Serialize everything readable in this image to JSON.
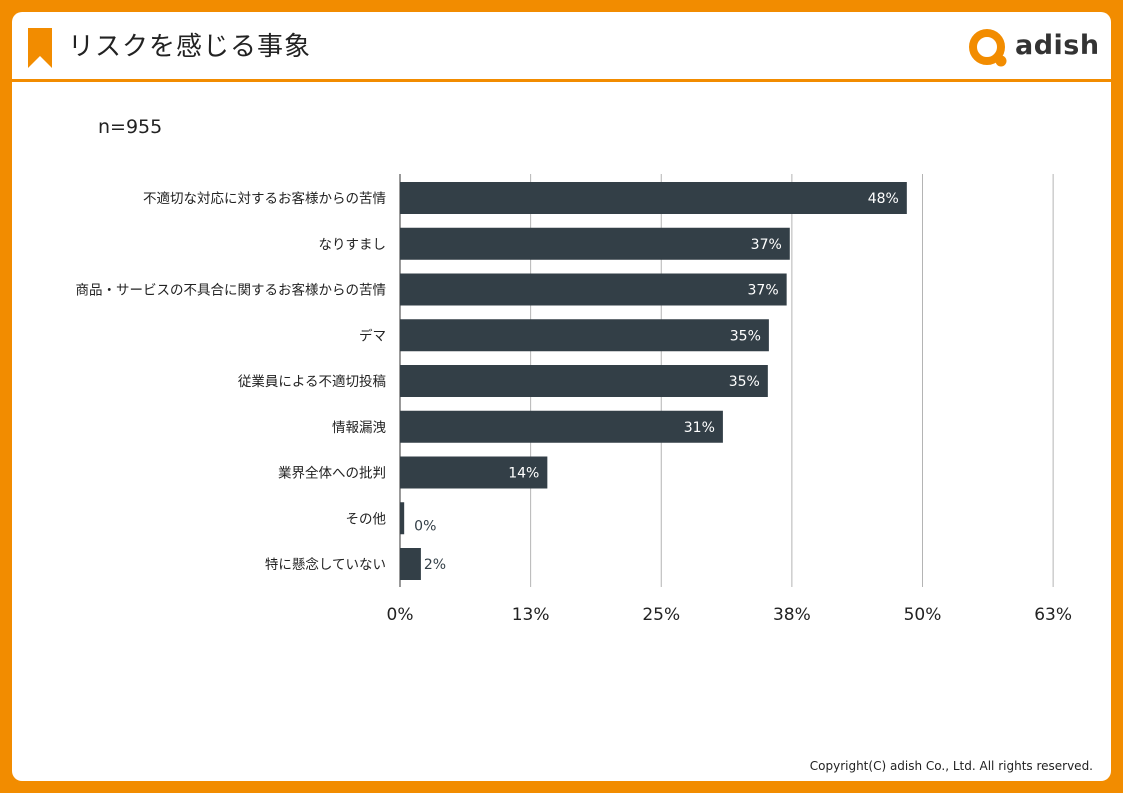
{
  "header": {
    "title": "リスクを感じる事象",
    "logo_text": "adish"
  },
  "sample_size": "n=955",
  "footer": {
    "copyright": "Copyright(C) adish Co., Ltd. All rights reserved."
  },
  "colors": {
    "accent": "#f28c00",
    "bar": "#333f47",
    "grid": "#b4b4b4"
  },
  "chart_data": {
    "type": "bar",
    "orientation": "horizontal",
    "title": "リスクを感じる事象",
    "categories": [
      "不適切な対応に対するお客様からの苦情",
      "なりすまし",
      "商品・サービスの不具合に関するお客様からの苦情",
      "デマ",
      "従業員による不適切投稿",
      "情報漏洩",
      "業界全体への批判",
      "その他",
      "特に懸念していない"
    ],
    "values": [
      48.5,
      37.3,
      37.0,
      35.3,
      35.2,
      30.9,
      14.1,
      0.4,
      2.0
    ],
    "value_labels": [
      "48%",
      "37%",
      "37%",
      "35%",
      "35%",
      "31%",
      "14%",
      "0%",
      "2%"
    ],
    "x_ticks": [
      0,
      12.5,
      25,
      37.5,
      50,
      62.5
    ],
    "x_tick_labels": [
      "0%",
      "13%",
      "25%",
      "38%",
      "50%",
      "63%"
    ],
    "xlim": [
      0,
      62.5
    ],
    "grid": true,
    "legend": "none"
  }
}
